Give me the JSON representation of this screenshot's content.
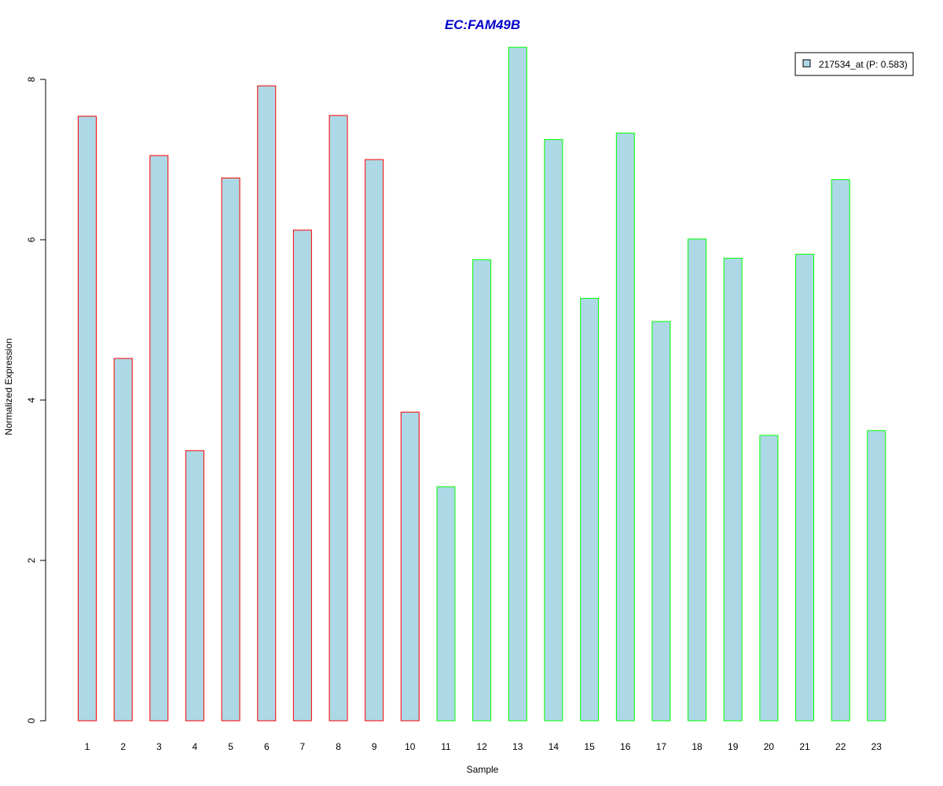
{
  "chart_data": {
    "type": "bar",
    "title": "EC:FAM49B",
    "xlabel": "Sample",
    "ylabel": "Normalized Expression",
    "ylim": [
      0,
      8.4
    ],
    "yticks": [
      0,
      2,
      4,
      6,
      8
    ],
    "grid": false,
    "legend": {
      "placement": "top-right",
      "entries": [
        "217534_at (P: 0.583)"
      ]
    },
    "categories": [
      "1",
      "2",
      "3",
      "4",
      "5",
      "6",
      "7",
      "8",
      "9",
      "10",
      "11",
      "12",
      "13",
      "14",
      "15",
      "16",
      "17",
      "18",
      "19",
      "20",
      "21",
      "22",
      "23"
    ],
    "series": [
      {
        "name": "217534_at (P: 0.583)",
        "values": [
          7.54,
          4.52,
          7.05,
          3.37,
          6.77,
          7.92,
          6.12,
          7.55,
          7.0,
          3.85,
          2.92,
          5.75,
          8.4,
          7.25,
          5.27,
          7.33,
          4.98,
          6.01,
          5.77,
          3.56,
          5.82,
          6.75,
          3.62
        ]
      }
    ],
    "fill_color": "#add8e6",
    "group_colors": {
      "group_1": "#ff0000",
      "group_2": "#00ff00"
    },
    "groups": [
      1,
      1,
      1,
      1,
      1,
      1,
      1,
      1,
      1,
      1,
      2,
      2,
      2,
      2,
      2,
      2,
      2,
      2,
      2,
      2,
      2,
      2,
      2
    ],
    "title_color": "#0000cc"
  }
}
